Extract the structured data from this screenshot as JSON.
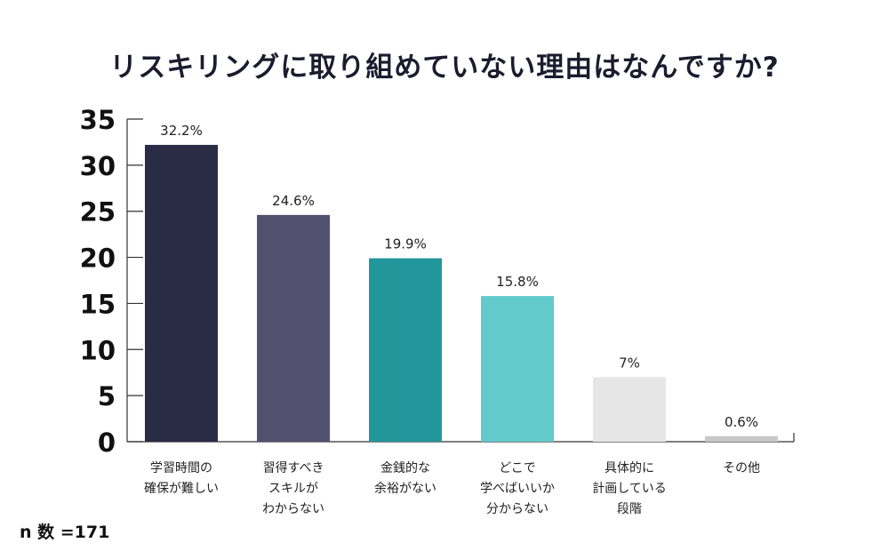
{
  "chart_data": {
    "type": "bar",
    "title": "リスキリングに取り組めていない理由はなんですか?",
    "categories": [
      "学習時間の\n確保が難しい",
      "習得すべき\nスキルが\nわからない",
      "金銭的な\n余裕がない",
      "どこで\n学べばいいか\n分からない",
      "具体的に\n計画している\n段階",
      "その他"
    ],
    "values": [
      32.2,
      24.6,
      19.9,
      15.8,
      7,
      0.6
    ],
    "value_labels": [
      "32.2%",
      "24.6%",
      "19.9%",
      "15.8%",
      "7%",
      "0.6%"
    ],
    "colors": [
      "#2a2b45",
      "#51506e",
      "#22979b",
      "#62cacb",
      "#e6e6e6",
      "#c8c8c8"
    ],
    "ylim": [
      0,
      35
    ],
    "yticks": [
      0,
      5,
      10,
      15,
      20,
      25,
      30,
      35
    ],
    "grid": false,
    "legend": "none"
  },
  "footnote": "n 数 =171"
}
